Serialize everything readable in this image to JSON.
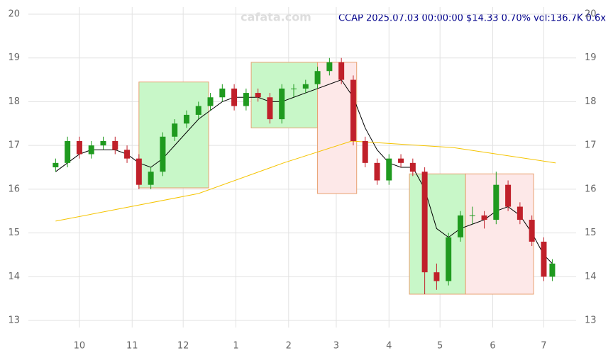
{
  "chart_data": {
    "type": "candlestick",
    "title": "CCAP 2025.07.03 00:00:00 $14.33 0.70% vol:136.7K 0.6x",
    "watermark": "cafata.com",
    "xlim": [
      0,
      322
    ],
    "ylim": [
      13,
      20
    ],
    "yticks": [
      13,
      14,
      15,
      16,
      17,
      18,
      19,
      20
    ],
    "xticks": [
      {
        "value": 30,
        "label": "10"
      },
      {
        "value": 61,
        "label": "11"
      },
      {
        "value": 91,
        "label": "12"
      },
      {
        "value": 122,
        "label": "1"
      },
      {
        "value": 153,
        "label": "2"
      },
      {
        "value": 181,
        "label": "3"
      },
      {
        "value": 212,
        "label": "4"
      },
      {
        "value": 242,
        "label": "5"
      },
      {
        "value": 273,
        "label": "6"
      },
      {
        "value": 303,
        "label": "7"
      }
    ],
    "grid": true,
    "up_color": "#1f9a1f",
    "down_color": "#c0202a",
    "x": [
      16,
      23,
      30,
      37,
      44,
      51,
      58,
      65,
      72,
      79,
      86,
      93,
      100,
      107,
      114,
      121,
      128,
      135,
      142,
      149,
      156,
      163,
      170,
      177,
      184,
      191,
      198,
      205,
      212,
      219,
      226,
      233,
      240,
      247,
      254,
      261,
      268,
      275,
      282,
      289,
      296,
      303,
      308
    ],
    "open": [
      16.5,
      16.6,
      17.1,
      16.8,
      17.0,
      17.1,
      16.9,
      16.7,
      16.1,
      16.4,
      17.2,
      17.5,
      17.7,
      17.9,
      18.1,
      18.3,
      17.9,
      18.2,
      18.1,
      17.6,
      18.3,
      18.3,
      18.4,
      18.7,
      18.9,
      18.5,
      17.1,
      16.6,
      16.2,
      16.7,
      16.6,
      16.4,
      14.1,
      13.9,
      14.9,
      15.4,
      15.4,
      15.3,
      16.1,
      15.6,
      15.3,
      14.8,
      14.0
    ],
    "high": [
      16.7,
      17.2,
      17.2,
      17.1,
      17.2,
      17.2,
      17.0,
      16.8,
      16.5,
      17.3,
      17.6,
      17.8,
      18.0,
      18.2,
      18.4,
      18.4,
      18.3,
      18.3,
      18.2,
      18.4,
      18.4,
      18.5,
      18.8,
      19.0,
      19.0,
      18.6,
      17.2,
      16.7,
      16.8,
      16.8,
      16.7,
      16.5,
      14.3,
      15.0,
      15.5,
      15.6,
      15.5,
      16.4,
      16.2,
      15.7,
      15.4,
      14.9,
      14.4
    ],
    "low": [
      16.4,
      16.5,
      16.7,
      16.7,
      16.9,
      16.8,
      16.6,
      16.0,
      16.0,
      16.3,
      17.1,
      17.4,
      17.6,
      17.8,
      18.0,
      17.8,
      17.8,
      18.0,
      17.5,
      17.5,
      18.1,
      18.2,
      18.3,
      18.6,
      18.4,
      17.0,
      16.5,
      16.1,
      16.1,
      16.5,
      16.3,
      13.6,
      13.7,
      13.8,
      14.8,
      15.2,
      15.1,
      15.2,
      15.5,
      15.2,
      14.7,
      13.9,
      13.9
    ],
    "close": [
      16.6,
      17.1,
      16.8,
      17.0,
      17.1,
      16.9,
      16.7,
      16.1,
      16.4,
      17.2,
      17.5,
      17.7,
      17.9,
      18.1,
      18.3,
      17.9,
      18.2,
      18.1,
      17.6,
      18.3,
      18.3,
      18.4,
      18.7,
      18.9,
      18.5,
      17.1,
      16.6,
      16.2,
      16.7,
      16.6,
      16.4,
      14.1,
      13.9,
      14.9,
      15.4,
      15.4,
      15.3,
      16.1,
      15.6,
      15.3,
      14.8,
      14.0,
      14.3
    ],
    "lines": [
      {
        "color": "#000000",
        "x": [
          16,
          23,
          30,
          37,
          44,
          51,
          58,
          65,
          72,
          79,
          86,
          93,
          100,
          107,
          114,
          121,
          128,
          135,
          142,
          149,
          156,
          163,
          170,
          177,
          184,
          191,
          198,
          205,
          212,
          219,
          226,
          233,
          240,
          247,
          254,
          261,
          268,
          275,
          282,
          289,
          296,
          303,
          308
        ],
        "values": [
          16.4,
          16.6,
          16.8,
          16.9,
          16.9,
          16.9,
          16.8,
          16.6,
          16.5,
          16.7,
          17.0,
          17.3,
          17.6,
          17.8,
          18.0,
          18.1,
          18.1,
          18.1,
          18.0,
          18.0,
          18.1,
          18.2,
          18.3,
          18.4,
          18.5,
          18.1,
          17.4,
          16.9,
          16.6,
          16.5,
          16.5,
          16.0,
          15.1,
          14.9,
          15.1,
          15.2,
          15.3,
          15.5,
          15.6,
          15.4,
          15.0,
          14.5,
          14.3
        ]
      },
      {
        "color": "#f5c400",
        "x": [
          16,
          100,
          150,
          190,
          250,
          310
        ],
        "values": [
          15.27,
          15.9,
          16.6,
          17.1,
          16.95,
          16.6
        ]
      }
    ],
    "zones": [
      {
        "x": [
          65,
          106
        ],
        "y": [
          16.03,
          18.45
        ],
        "color": "#c8f7c8"
      },
      {
        "x": [
          131,
          170
        ],
        "y": [
          17.4,
          18.9
        ],
        "color": "#c8f7c8"
      },
      {
        "x": [
          170,
          193
        ],
        "y": [
          15.9,
          18.9
        ],
        "color": "#fde8e8"
      },
      {
        "x": [
          224,
          257
        ],
        "y": [
          13.6,
          16.35
        ],
        "color": "#c8f7c8"
      },
      {
        "x": [
          257,
          297
        ],
        "y": [
          13.6,
          16.35
        ],
        "color": "#fde8e8"
      }
    ]
  }
}
